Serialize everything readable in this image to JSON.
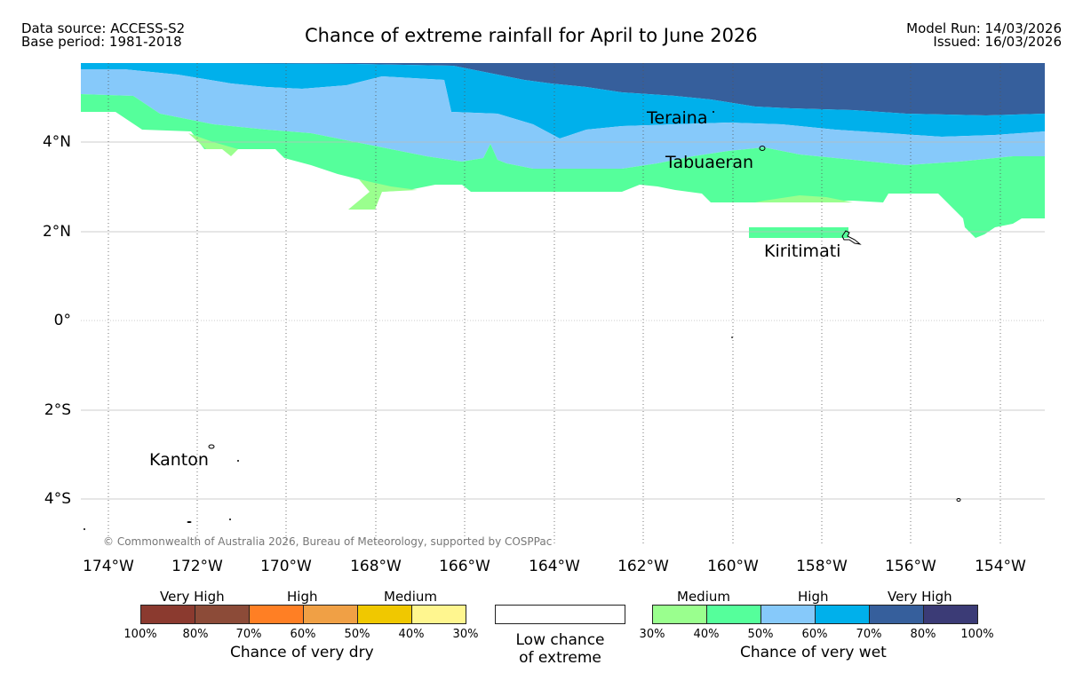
{
  "header": {
    "data_source": "Data source: ACCESS-S2",
    "base_period": "Base period: 1981-2018",
    "title": "Chance of extreme rainfall for April to June 2026",
    "model_run": "Model Run: 14/03/2026",
    "issued": "Issued: 16/03/2026"
  },
  "map": {
    "lat_labels": [
      "4°N",
      "2°N",
      "0°",
      "2°S",
      "4°S"
    ],
    "lon_labels": [
      "174°W",
      "172°W",
      "170°W",
      "168°W",
      "166°W",
      "164°W",
      "162°W",
      "160°W",
      "158°W",
      "156°W",
      "154°W"
    ],
    "places": [
      "Teraina",
      "Tabuaeran",
      "Kiritimati",
      "Kanton"
    ],
    "copyright": "© Commonwealth of Australia 2026, Bureau of Meteorology, supported by COSPPac"
  },
  "legend": {
    "dry": {
      "headings": [
        "Very High",
        "High",
        "Medium"
      ],
      "ticks": [
        "100%",
        "80%",
        "70%",
        "60%",
        "50%",
        "40%",
        "30%"
      ],
      "caption": "Chance of very dry",
      "colors": [
        "#8b3a2f",
        "#8c4b38",
        "#ff7f24",
        "#f0a045",
        "#f0c800",
        "#fff68f"
      ]
    },
    "low": {
      "caption_line1": "Low chance",
      "caption_line2": "of extreme"
    },
    "wet": {
      "headings": [
        "Medium",
        "High",
        "Very High"
      ],
      "ticks": [
        "30%",
        "40%",
        "50%",
        "60%",
        "70%",
        "80%",
        "100%"
      ],
      "caption": "Chance of very wet",
      "colors": [
        "#9aff8e",
        "#55ff9b",
        "#86c9fa",
        "#00b0eb",
        "#365f9c",
        "#3b3b76"
      ]
    }
  },
  "colors": {
    "medium_light": "#9aff8e",
    "medium": "#55ff9b",
    "high_light": "#86c9fa",
    "high": "#00b0eb",
    "very_high": "#365f9c",
    "very_high_dark": "#3b3b76"
  }
}
